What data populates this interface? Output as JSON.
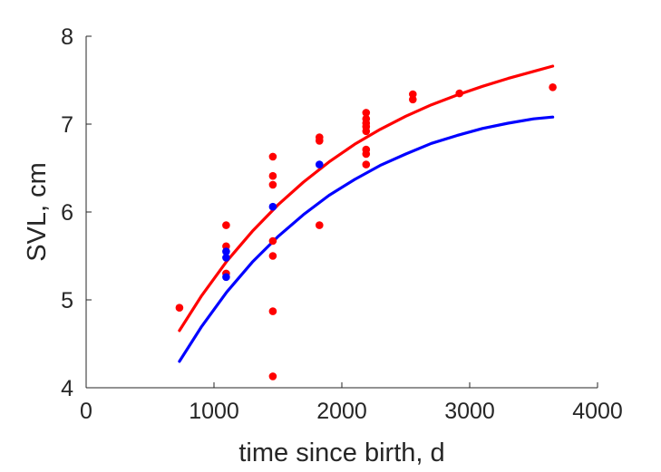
{
  "chart_data": {
    "type": "scatter",
    "title": "",
    "xlabel": "time since birth, d",
    "ylabel": "SVL, cm",
    "xlim": [
      0,
      4000
    ],
    "ylim": [
      4,
      8
    ],
    "xticks": [
      0,
      1000,
      2000,
      3000,
      4000
    ],
    "yticks": [
      4,
      5,
      6,
      7,
      8
    ],
    "grid": false,
    "legend": "none",
    "series": [
      {
        "kind": "points",
        "color": "#ff0000",
        "x": [
          730,
          1095,
          1095,
          1095,
          1460,
          1460,
          1460,
          1460,
          1460,
          1460,
          1460,
          1825,
          1825,
          1825,
          2190,
          2190,
          2190,
          2190,
          2190,
          2190,
          2190,
          2190,
          2555,
          2555,
          2920,
          3650
        ],
        "y": [
          4.91,
          5.85,
          5.61,
          5.3,
          6.63,
          6.41,
          6.31,
          5.67,
          5.5,
          4.87,
          4.13,
          6.85,
          6.81,
          5.85,
          7.13,
          7.06,
          7.01,
          6.97,
          6.92,
          6.71,
          6.66,
          6.54,
          7.34,
          7.28,
          7.35,
          7.42
        ]
      },
      {
        "kind": "points",
        "color": "#0000ff",
        "x": [
          1095,
          1095,
          1095,
          1460,
          1825
        ],
        "y": [
          5.55,
          5.48,
          5.26,
          6.06,
          6.54
        ]
      },
      {
        "kind": "line",
        "color": "#ff0000",
        "x": [
          730,
          900,
          1100,
          1300,
          1500,
          1700,
          1900,
          2100,
          2300,
          2500,
          2700,
          2900,
          3100,
          3300,
          3500,
          3650
        ],
        "y": [
          4.65,
          5.04,
          5.44,
          5.78,
          6.08,
          6.34,
          6.57,
          6.77,
          6.94,
          7.09,
          7.22,
          7.33,
          7.43,
          7.52,
          7.6,
          7.66
        ]
      },
      {
        "kind": "line",
        "color": "#0000ff",
        "x": [
          730,
          900,
          1100,
          1300,
          1500,
          1700,
          1900,
          2100,
          2300,
          2500,
          2700,
          2900,
          3100,
          3300,
          3500,
          3650
        ],
        "y": [
          4.3,
          4.69,
          5.09,
          5.43,
          5.72,
          5.97,
          6.19,
          6.37,
          6.53,
          6.66,
          6.78,
          6.87,
          6.95,
          7.01,
          7.06,
          7.08
        ]
      }
    ]
  }
}
